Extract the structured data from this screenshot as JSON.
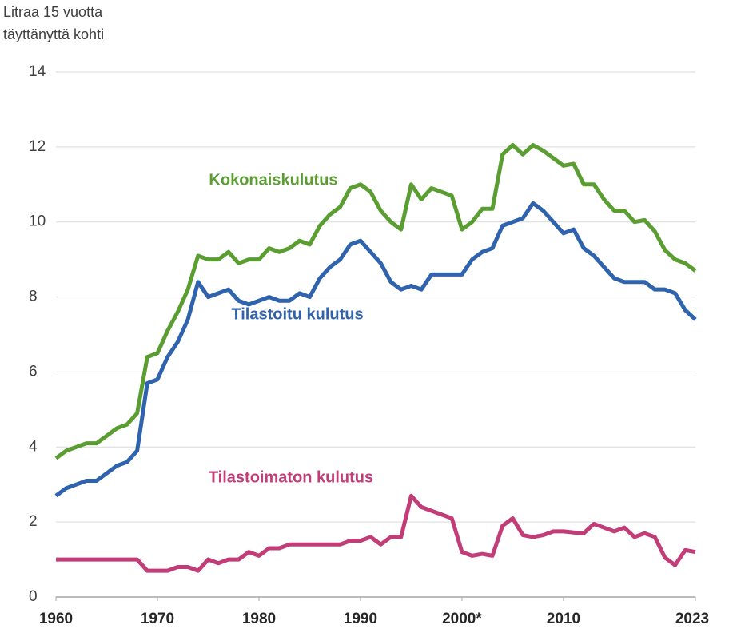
{
  "chart_data": {
    "type": "line",
    "ylabel": [
      "Litraa 15 vuotta",
      "täyttänyttä kohti"
    ],
    "x": [
      1960,
      1961,
      1962,
      1963,
      1964,
      1965,
      1966,
      1967,
      1968,
      1969,
      1970,
      1971,
      1972,
      1973,
      1974,
      1975,
      1976,
      1977,
      1978,
      1979,
      1980,
      1981,
      1982,
      1983,
      1984,
      1985,
      1986,
      1987,
      1988,
      1989,
      1990,
      1991,
      1992,
      1993,
      1994,
      1995,
      1996,
      1997,
      1998,
      1999,
      2000,
      2001,
      2002,
      2003,
      2004,
      2005,
      2006,
      2007,
      2008,
      2009,
      2010,
      2011,
      2012,
      2013,
      2014,
      2015,
      2016,
      2017,
      2018,
      2019,
      2020,
      2021,
      2022,
      2023
    ],
    "series": [
      {
        "name": "Kokonaiskulutus",
        "color": "#5a9e32",
        "values": [
          3.7,
          3.9,
          4.0,
          4.1,
          4.1,
          4.3,
          4.5,
          4.6,
          4.9,
          6.4,
          6.5,
          7.1,
          7.6,
          8.2,
          9.1,
          9.0,
          9.0,
          9.2,
          8.9,
          9.0,
          9.0,
          9.3,
          9.2,
          9.3,
          9.5,
          9.4,
          9.9,
          10.2,
          10.4,
          10.9,
          11.0,
          10.8,
          10.3,
          10.0,
          9.8,
          11.0,
          10.6,
          10.9,
          10.8,
          10.7,
          9.8,
          10.0,
          10.35,
          10.35,
          11.8,
          12.05,
          11.8,
          12.05,
          11.9,
          11.7,
          11.5,
          11.55,
          11.0,
          11.0,
          10.6,
          10.3,
          10.3,
          10.0,
          10.05,
          9.75,
          9.25,
          9.0,
          8.9,
          8.7
        ]
      },
      {
        "name": "Tilastoitu kulutus",
        "color": "#2f63ae",
        "values": [
          2.7,
          2.9,
          3.0,
          3.1,
          3.1,
          3.3,
          3.5,
          3.6,
          3.9,
          5.7,
          5.8,
          6.4,
          6.8,
          7.4,
          8.4,
          8.0,
          8.1,
          8.2,
          7.9,
          7.8,
          7.9,
          8.0,
          7.9,
          7.9,
          8.1,
          8.0,
          8.5,
          8.8,
          9.0,
          9.4,
          9.5,
          9.2,
          8.9,
          8.4,
          8.2,
          8.3,
          8.2,
          8.6,
          8.6,
          8.6,
          8.6,
          9.0,
          9.2,
          9.3,
          9.9,
          10.0,
          10.1,
          10.5,
          10.3,
          10.0,
          9.7,
          9.8,
          9.3,
          9.1,
          8.8,
          8.5,
          8.4,
          8.4,
          8.4,
          8.2,
          8.2,
          8.1,
          7.65,
          7.4
        ]
      },
      {
        "name": "Tilastoimaton kulutus",
        "color": "#c23c78",
        "values": [
          1.0,
          1.0,
          1.0,
          1.0,
          1.0,
          1.0,
          1.0,
          1.0,
          1.0,
          0.7,
          0.7,
          0.7,
          0.8,
          0.8,
          0.7,
          1.0,
          0.9,
          1.0,
          1.0,
          1.2,
          1.1,
          1.3,
          1.3,
          1.4,
          1.4,
          1.4,
          1.4,
          1.4,
          1.4,
          1.5,
          1.5,
          1.6,
          1.4,
          1.6,
          1.6,
          2.7,
          2.4,
          2.3,
          2.2,
          2.1,
          1.2,
          1.1,
          1.15,
          1.1,
          1.9,
          2.1,
          1.65,
          1.6,
          1.65,
          1.75,
          1.75,
          1.72,
          1.7,
          1.95,
          1.85,
          1.75,
          1.85,
          1.6,
          1.7,
          1.6,
          1.05,
          0.85,
          1.25,
          1.2
        ]
      }
    ],
    "xlim": [
      1960,
      2023
    ],
    "xticks": [
      1960,
      1970,
      1980,
      1990,
      {
        "value": 2000,
        "label": "2000*"
      },
      2010,
      2023
    ],
    "ylim": [
      0,
      14
    ],
    "yticks": [
      0,
      2,
      4,
      6,
      8,
      10,
      12,
      14
    ],
    "grid": true
  }
}
